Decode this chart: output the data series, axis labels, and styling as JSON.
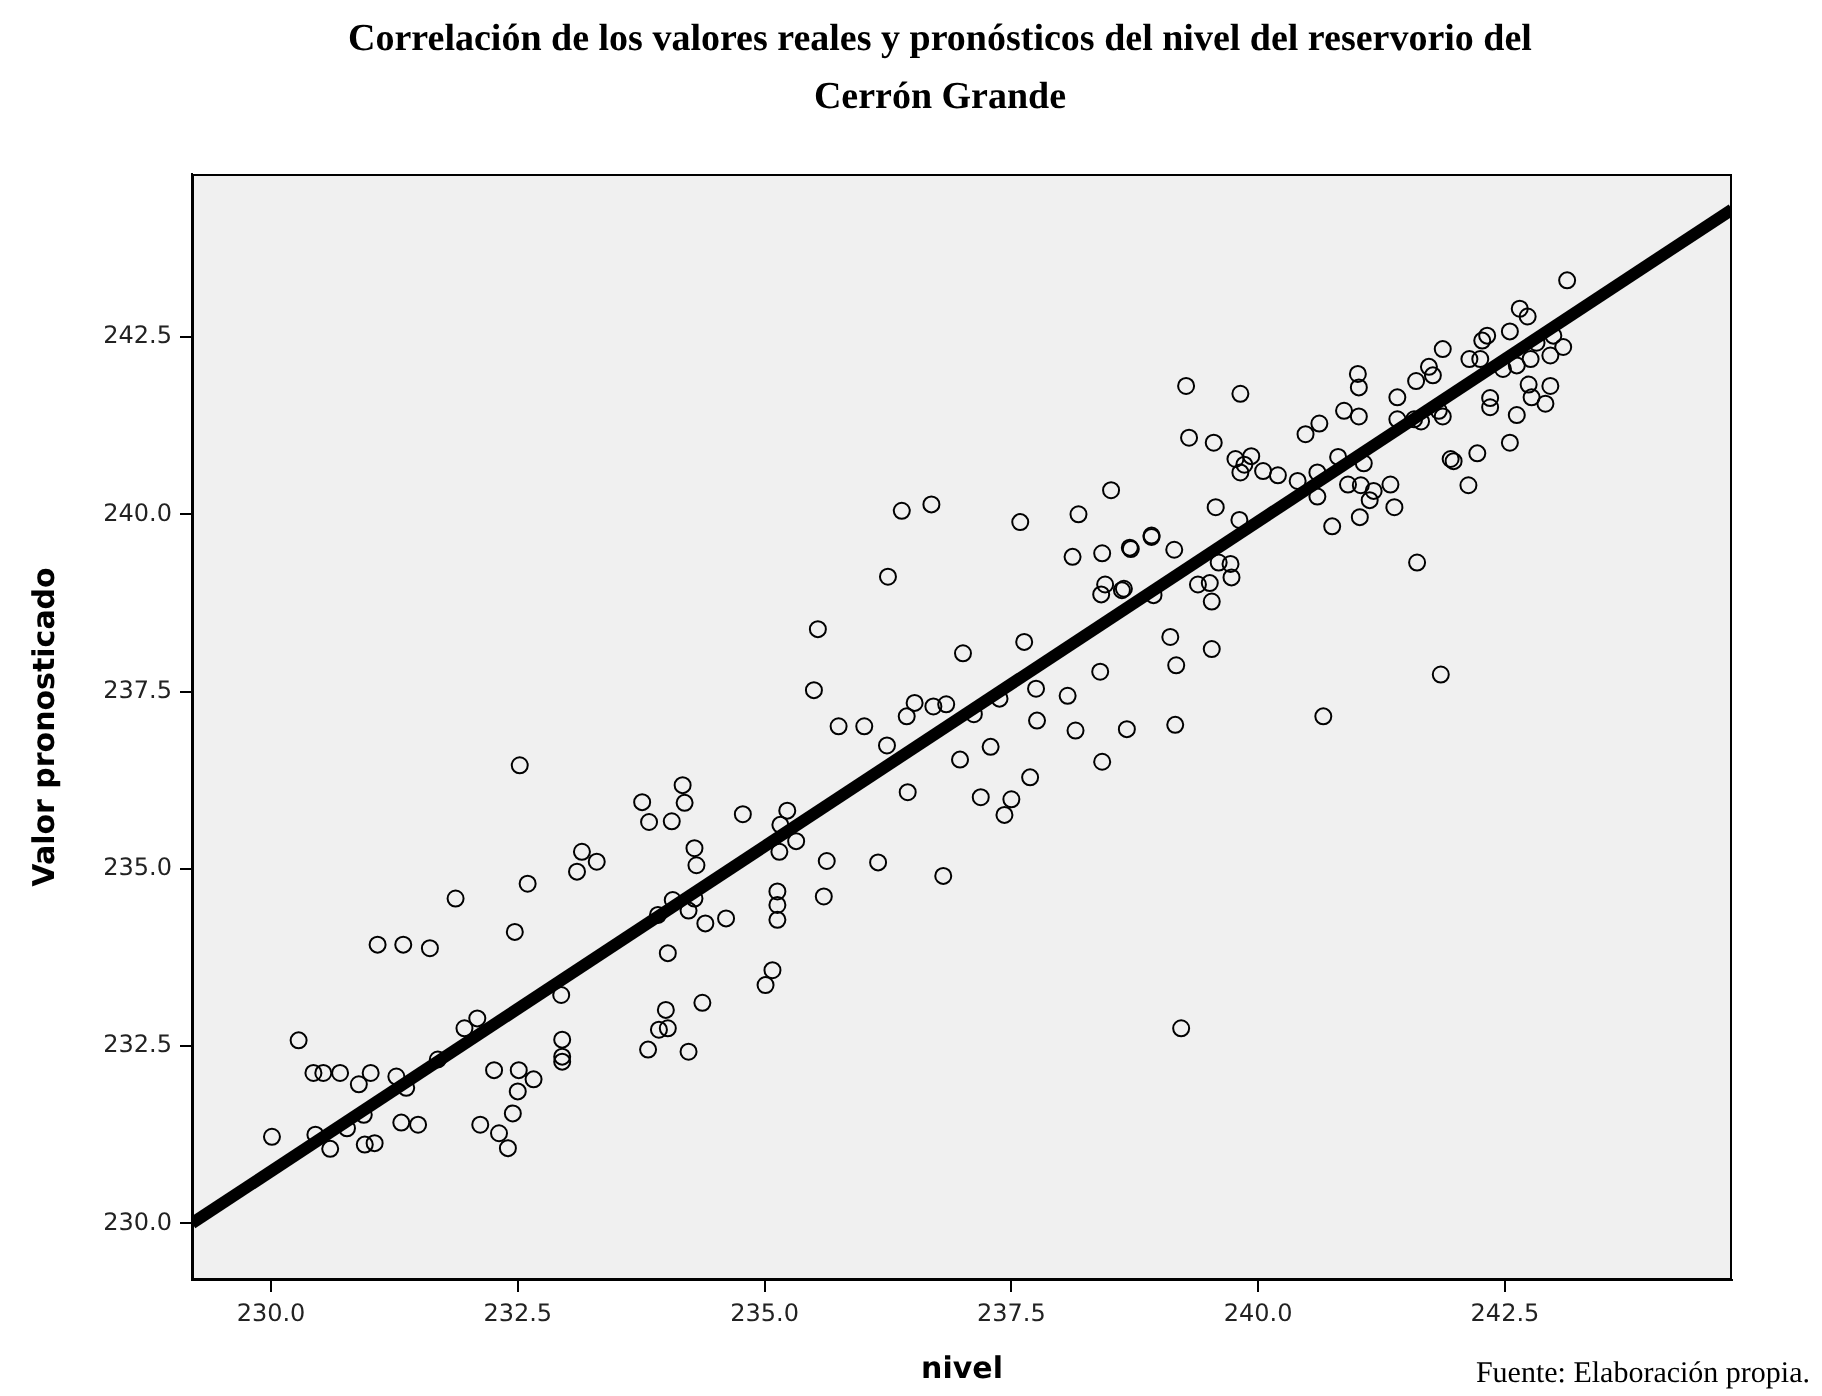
{
  "chart_data": {
    "type": "scatter",
    "title": "Correlación de los valores reales y pronósticos del nivel del reservorio del Cerrón Grande",
    "xlabel": "nivel",
    "ylabel": "Valor pronosticado",
    "annotations": [
      "Fuente: Elaboración propia."
    ],
    "marker": "circle",
    "legend": false,
    "xlim": [
      229.2,
      244.8
    ],
    "ylim": [
      229.2,
      244.8
    ],
    "xticks": [
      {
        "value": 230,
        "label": "230.0"
      },
      {
        "value": 232.5,
        "label": "232.5"
      },
      {
        "value": 235,
        "label": "235.0"
      },
      {
        "value": 237.5,
        "label": "237.5"
      },
      {
        "value": 240,
        "label": "240.0"
      },
      {
        "value": 242.5,
        "label": "242.5"
      }
    ],
    "yticks": [
      {
        "value": 230,
        "label": "230.0"
      },
      {
        "value": 232.5,
        "label": "232.5"
      },
      {
        "value": 235,
        "label": "235.0"
      },
      {
        "value": 237.5,
        "label": "237.5"
      },
      {
        "value": 240,
        "label": "240.0"
      },
      {
        "value": 242.5,
        "label": "242.5"
      }
    ],
    "series": [
      {
        "color": "#000000",
        "x": [
          243.13,
          242.65,
          242.73,
          242.55,
          242.32,
          242.27,
          241.87,
          242.14,
          241.73,
          241.6,
          241.77,
          241.41,
          241.01,
          241.02,
          240.87,
          241.02,
          240.62,
          240.48,
          239.27,
          239.82,
          239.3,
          239.55,
          239.77,
          239.93,
          239.86,
          239.82,
          240.05,
          240.2,
          240.4,
          240.6,
          240.81,
          241.07,
          240.91,
          241.04,
          241.17,
          241.34,
          241.13,
          241.38,
          241.03,
          240.75,
          240.6,
          239.57,
          239.81,
          238.92,
          238.71,
          239.15,
          239.6,
          239.72,
          239.73,
          239.39,
          239.51,
          239.53,
          238.64,
          238.94,
          239.11,
          239.53,
          239.17,
          238.67,
          239.16,
          240.66,
          241.61,
          241.85,
          241.95,
          241.98,
          242.22,
          242.13,
          242.55,
          242.62,
          242.91,
          242.77,
          242.96,
          242.74,
          242.35,
          242.35,
          241.87,
          241.83,
          241.65,
          241.58,
          241.41,
          242.62,
          242.76,
          242.96,
          243.09,
          242.99,
          242.82,
          242.48,
          242.25,
          238.51,
          238.18,
          237.59,
          236.39,
          236.69,
          236.25,
          238.12,
          238.42,
          238.7,
          238.92,
          238.45,
          238.41,
          238.62,
          237.63,
          237.01,
          237.75,
          238.07,
          238.4,
          237.38,
          237.12,
          236.84,
          236.71,
          236.52,
          236.44,
          235.54,
          235.5,
          235.75,
          236.01,
          236.24,
          237.76,
          238.15,
          238.42,
          237.29,
          236.98,
          237.69,
          237.19,
          237.5,
          237.43,
          236.45,
          234.78,
          235.23,
          235.16,
          235.32,
          235.15,
          235.63,
          236.15,
          236.81,
          235.6,
          235.13,
          235.13,
          235.13,
          234.61,
          234.4,
          234.29,
          234.07,
          233.92,
          234.23,
          234.17,
          234.19,
          233.76,
          233.83,
          234.06,
          234.29,
          234.31,
          234.02,
          235.08,
          235.01,
          234.37,
          234.0,
          233.93,
          234.02,
          233.82,
          234.23,
          239.22,
          232.52,
          232.6,
          231.87,
          232.47,
          231.08,
          231.34,
          231.61,
          233.15,
          233.1,
          233.3,
          232.94,
          232.09,
          231.96,
          231.69,
          230.28,
          230.43,
          230.53,
          230.7,
          230.89,
          231.01,
          231.27,
          231.37,
          232.26,
          232.51,
          232.66,
          232.5,
          232.45,
          232.12,
          232.31,
          232.4,
          231.32,
          231.49,
          230.94,
          230.77,
          230.95,
          231.05,
          230.6,
          230.45,
          230.01,
          232.95,
          232.95,
          232.95
        ],
        "values": [
          243.3,
          242.9,
          242.79,
          242.58,
          242.52,
          242.45,
          242.33,
          242.19,
          242.08,
          241.88,
          241.96,
          241.65,
          241.98,
          241.79,
          241.46,
          241.38,
          241.28,
          241.13,
          241.81,
          241.7,
          241.08,
          241.01,
          240.78,
          240.82,
          240.7,
          240.59,
          240.61,
          240.55,
          240.47,
          240.59,
          240.81,
          240.72,
          240.42,
          240.41,
          240.33,
          240.42,
          240.2,
          240.1,
          239.96,
          239.83,
          240.25,
          240.1,
          239.92,
          239.7,
          239.51,
          239.5,
          239.32,
          239.3,
          239.11,
          239.01,
          239.03,
          238.77,
          238.95,
          238.86,
          238.27,
          238.1,
          237.87,
          236.97,
          237.03,
          237.15,
          239.32,
          237.74,
          240.78,
          240.75,
          240.86,
          240.41,
          241.01,
          241.4,
          241.56,
          241.65,
          241.81,
          241.83,
          241.64,
          241.51,
          241.38,
          241.46,
          241.31,
          241.34,
          241.34,
          242.1,
          242.19,
          242.24,
          242.36,
          242.52,
          242.42,
          242.05,
          242.19,
          240.34,
          240.0,
          239.89,
          240.05,
          240.14,
          239.12,
          239.4,
          239.45,
          239.53,
          239.68,
          239.01,
          238.87,
          238.93,
          238.2,
          238.04,
          237.54,
          237.44,
          237.78,
          237.4,
          237.18,
          237.32,
          237.29,
          237.34,
          237.15,
          238.38,
          237.52,
          237.01,
          237.01,
          236.74,
          237.09,
          236.95,
          236.51,
          236.72,
          236.54,
          236.29,
          236.01,
          235.98,
          235.76,
          236.08,
          235.77,
          235.82,
          235.62,
          235.39,
          235.24,
          235.11,
          235.09,
          234.9,
          234.61,
          234.68,
          234.49,
          234.28,
          234.3,
          234.23,
          234.58,
          234.56,
          234.35,
          234.41,
          236.18,
          235.93,
          235.94,
          235.66,
          235.67,
          235.29,
          235.05,
          233.81,
          233.57,
          233.36,
          233.11,
          233.01,
          232.73,
          232.75,
          232.45,
          232.42,
          232.75,
          236.46,
          234.79,
          234.58,
          234.11,
          233.93,
          233.93,
          233.88,
          235.24,
          234.96,
          235.1,
          233.22,
          232.89,
          232.75,
          232.31,
          232.58,
          232.12,
          232.12,
          232.12,
          231.96,
          232.12,
          232.07,
          231.91,
          232.16,
          232.16,
          232.03,
          231.86,
          231.55,
          231.39,
          231.27,
          231.06,
          231.42,
          231.39,
          231.53,
          231.34,
          231.11,
          231.13,
          231.05,
          231.25,
          231.22,
          232.59,
          232.35,
          232.28
        ]
      },
      {
        "type": "line",
        "color": "#000000",
        "marker": "none",
        "x": [
          229.2,
          244.8
        ],
        "values": [
          230.0,
          244.3
        ]
      }
    ]
  }
}
